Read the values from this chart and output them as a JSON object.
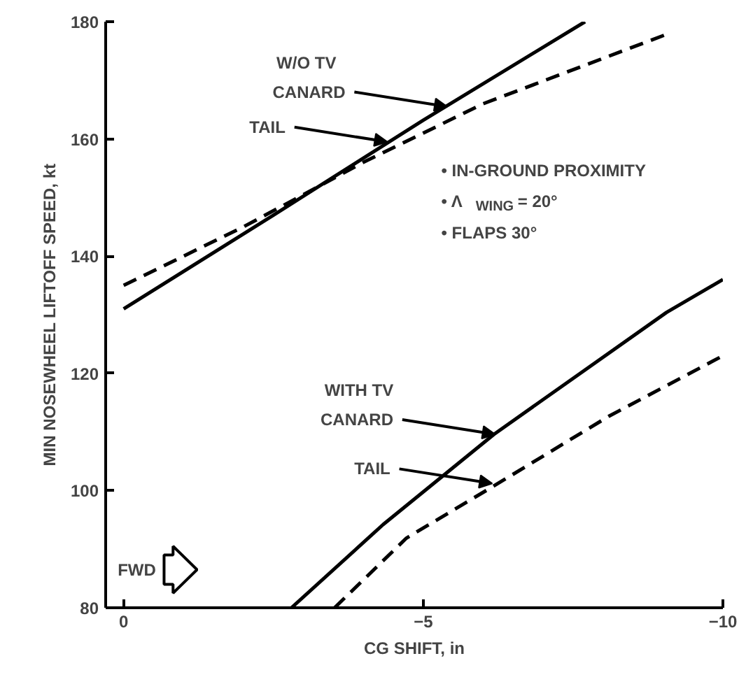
{
  "chart_data": {
    "type": "line",
    "xlabel": "CG SHIFT, in",
    "ylabel": "MIN NOSEWHEEL LIFTOFF SPEED, kt",
    "xlim": [
      0.3,
      -10
    ],
    "ylim": [
      80,
      180
    ],
    "xticks": [
      0,
      {
        "value": -5,
        "label": "−5"
      },
      {
        "value": -10,
        "label": "−10"
      }
    ],
    "yticks": [
      80,
      100,
      120,
      140,
      160,
      180
    ],
    "grid": false,
    "marker": "none",
    "series": [
      {
        "color": "#000000",
        "line_style": "solid",
        "x": [
          0,
          -2.5,
          -5,
          -7.7
        ],
        "values": [
          131,
          147,
          163.2,
          180
        ]
      },
      {
        "color": "#000000",
        "line_style": "dashed",
        "x": [
          0,
          -2,
          -4,
          -6,
          -9.1
        ],
        "values": [
          135,
          145,
          156,
          166,
          178
        ]
      },
      {
        "color": "#000000",
        "line_style": "solid",
        "x": [
          -2.8,
          -4.33,
          -6.18,
          -9.06,
          -10
        ],
        "values": [
          80,
          94.2,
          109.6,
          130.4,
          136
        ]
      },
      {
        "color": "#000000",
        "line_style": "dashed",
        "x": [
          -3.52,
          -4.72,
          -6.18,
          -8.1,
          -10
        ],
        "values": [
          80,
          91.9,
          100.8,
          112.7,
          123
        ]
      }
    ],
    "annotations": [
      "W/O TV",
      {
        "text": "CANARD",
        "x": -5.4,
        "y": 165.5
      },
      {
        "text": "TAIL",
        "x": -4.4,
        "y": 159.5
      },
      "WITH TV",
      {
        "text": "CANARD",
        "x": -6.2,
        "y": 109.6
      },
      {
        "text": "TAIL",
        "x": -6.15,
        "y": 101.2
      },
      "• IN-GROUND PROXIMITY",
      "• Λ$_{WING}$ = 20°",
      "• FLAPS 30°",
      "FWD"
    ]
  }
}
